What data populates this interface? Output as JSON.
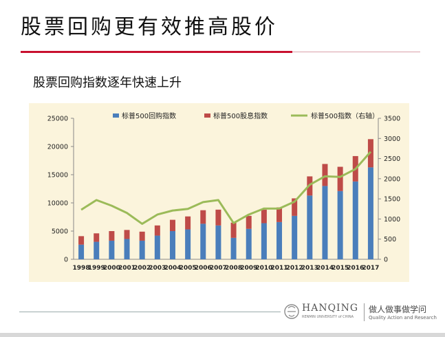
{
  "slide": {
    "title": "股票回购更有效推高股价",
    "subtitle": "股票回购指数逐年快速上升"
  },
  "footer": {
    "brand": "HANQING",
    "brand_sub": "RENMIN UNIVERSITY of CHINA",
    "slogan": "做人做事做学问",
    "slogan_sub": "Quality Action and Research"
  },
  "colors": {
    "accent": "#c8102e",
    "buyback": "#4a7ebb",
    "dividend": "#be4b48",
    "sp500": "#9bbb59",
    "panel": "#fbf4dc"
  },
  "chart_data": {
    "type": "bar",
    "stacked": true,
    "categories": [
      "1998",
      "1999",
      "2000",
      "2001",
      "2002",
      "2003",
      "2004",
      "2005",
      "2006",
      "2007",
      "2008",
      "2009",
      "2010",
      "2011",
      "2012",
      "2013",
      "2014",
      "2015",
      "2016",
      "2017"
    ],
    "series": [
      {
        "name": "标普500回购指数",
        "axis": "left",
        "type": "bar",
        "values": [
          2600,
          3100,
          3300,
          3600,
          3300,
          4200,
          5000,
          5300,
          6300,
          6000,
          3800,
          5400,
          6400,
          6600,
          7700,
          11300,
          13000,
          12100,
          13800,
          16300
        ]
      },
      {
        "name": "标普500股息指数",
        "axis": "left",
        "type": "bar",
        "values": [
          1500,
          1500,
          1700,
          1600,
          1600,
          1800,
          2000,
          2300,
          2400,
          2800,
          2700,
          2300,
          2400,
          2600,
          3100,
          3400,
          3900,
          4300,
          4500,
          5000
        ]
      },
      {
        "name": "标普500指数（右轴）",
        "axis": "right",
        "type": "line",
        "values": [
          1230,
          1470,
          1330,
          1150,
          880,
          1110,
          1210,
          1250,
          1420,
          1470,
          900,
          1110,
          1260,
          1260,
          1430,
          1850,
          2060,
          2045,
          2240,
          2670
        ]
      }
    ],
    "y_left": {
      "min": 0,
      "max": 25000,
      "ticks": [
        "0",
        "5000",
        "10000",
        "15000",
        "20000",
        "25000"
      ]
    },
    "y_right": {
      "min": 0,
      "max": 3500,
      "ticks": [
        "0",
        "500",
        "1000",
        "1500",
        "2000",
        "2500",
        "3000",
        "3500"
      ]
    },
    "legend": "top",
    "grid": false
  }
}
